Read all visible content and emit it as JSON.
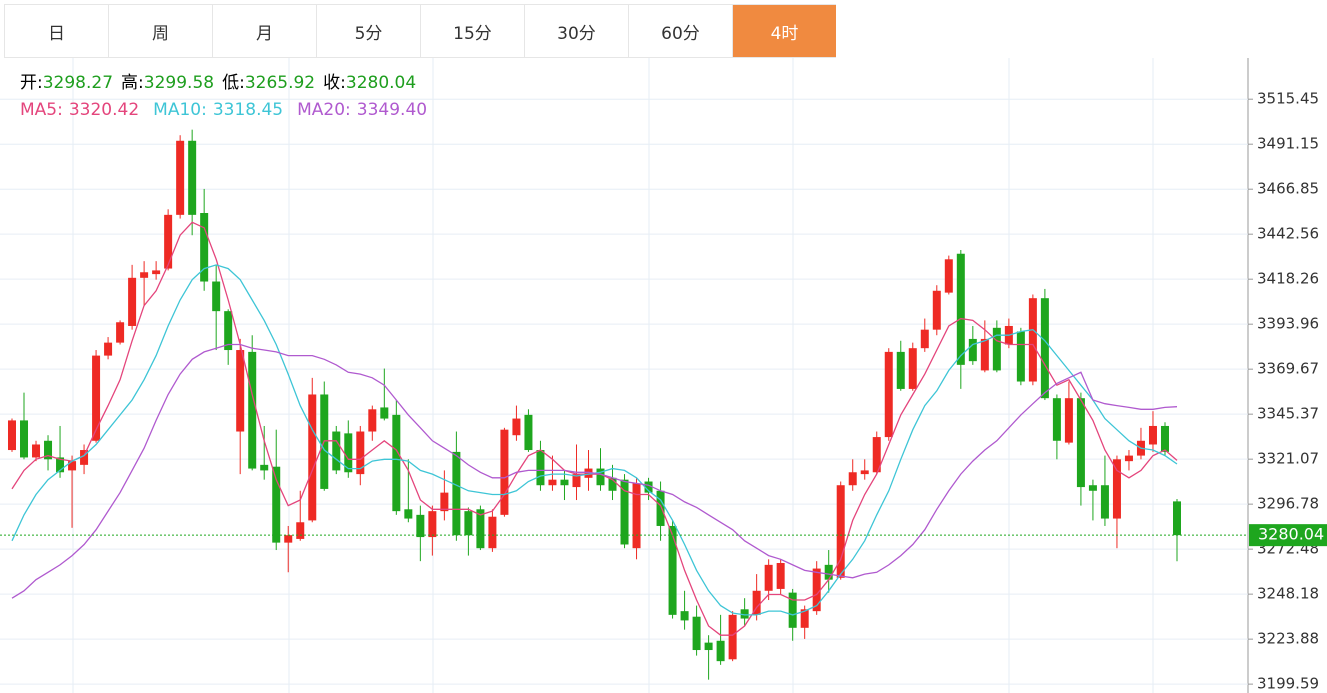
{
  "tabs": {
    "items": [
      "日",
      "周",
      "月",
      "5分",
      "15分",
      "30分",
      "60分",
      "4时"
    ],
    "active": 7
  },
  "chart_data": {
    "type": "candlestick",
    "header_labels": [
      "开:",
      "高:",
      "低:",
      "收:"
    ],
    "up_color": "#ee2a24",
    "down_color": "#1ea61e",
    "candles": {
      "open": [
        3326,
        3342,
        3322,
        3331,
        3322,
        3315,
        3318,
        3331,
        3377,
        3384,
        3393,
        3419,
        3421,
        3424,
        3453,
        3493,
        3454,
        3417,
        3401,
        3336,
        3379,
        3318,
        3317,
        3276,
        3278,
        3288,
        3356,
        3336,
        3335,
        3313,
        3336,
        3349,
        3345,
        3294,
        3291,
        3279,
        3293,
        3325,
        3293,
        3294,
        3273,
        3291,
        3334,
        3345,
        3326,
        3307,
        3310,
        3306,
        3311,
        3316,
        3311,
        3310,
        3273,
        3309,
        3304,
        3285,
        3239,
        3236,
        3222,
        3223,
        3213,
        3240,
        3237,
        3250,
        3251,
        3249,
        3230,
        3239,
        3264,
        3257,
        3307,
        3313,
        3314,
        3333,
        3379,
        3359,
        3381,
        3391,
        3411,
        3432,
        3386,
        3369,
        3392,
        3383,
        3390,
        3363,
        3408,
        3354,
        3330,
        3354,
        3307,
        3307,
        3289,
        3320,
        3323,
        3329,
        3339,
        3298.27
      ],
      "high": [
        3343,
        3357,
        3331,
        3334,
        3339,
        3323,
        3329,
        3380,
        3387,
        3396,
        3426,
        3428,
        3428,
        3456,
        3496,
        3499,
        3467,
        3426,
        3402,
        3386,
        3388,
        3339,
        3337,
        3285,
        3304,
        3365,
        3363,
        3339,
        3342,
        3339,
        3350,
        3370,
        3353,
        3321,
        3296,
        3296,
        3315,
        3336,
        3295,
        3296,
        3294,
        3338,
        3350,
        3348,
        3331,
        3323,
        3315,
        3329,
        3326,
        3327,
        3318,
        3313,
        3311,
        3311,
        3309,
        3288,
        3250,
        3242,
        3226,
        3237,
        3239,
        3246,
        3259,
        3267,
        3267,
        3251,
        3242,
        3266,
        3272,
        3309,
        3321,
        3321,
        3336,
        3381,
        3385,
        3384,
        3397,
        3415,
        3431,
        3434,
        3393,
        3396,
        3396,
        3397,
        3392,
        3410,
        3413,
        3356,
        3363,
        3357,
        3310,
        3323,
        3323,
        3326,
        3338,
        3347,
        3341,
        3299.58
      ],
      "low": [
        3325,
        3321,
        3320,
        3315,
        3311,
        3284,
        3313,
        3330,
        3375,
        3383,
        3391,
        3404,
        3418,
        3423,
        3451,
        3442,
        3412,
        3380,
        3372,
        3313,
        3315,
        3310,
        3272,
        3260,
        3277,
        3287,
        3304,
        3313,
        3311,
        3307,
        3331,
        3342,
        3291,
        3287,
        3266,
        3269,
        3288,
        3277,
        3269,
        3272,
        3271,
        3290,
        3331,
        3325,
        3304,
        3304,
        3299,
        3299,
        3304,
        3304,
        3299,
        3273,
        3267,
        3299,
        3277,
        3235,
        3229,
        3215,
        3202,
        3210,
        3212,
        3231,
        3234,
        3245,
        3248,
        3223,
        3224,
        3237,
        3249,
        3256,
        3304,
        3310,
        3313,
        3331,
        3358,
        3358,
        3379,
        3388,
        3410,
        3359,
        3372,
        3368,
        3368,
        3381,
        3361,
        3361,
        3353,
        3321,
        3329,
        3296,
        3288,
        3285,
        3273,
        3315,
        3321,
        3325,
        3323,
        3265.92
      ],
      "close": [
        3342,
        3322,
        3329,
        3321,
        3314,
        3320,
        3326,
        3377,
        3384,
        3395,
        3419,
        3422,
        3423,
        3453,
        3493,
        3453,
        3417,
        3401,
        3380,
        3380,
        3316,
        3315,
        3276,
        3280,
        3287,
        3356,
        3305,
        3315,
        3314,
        3336,
        3348,
        3343,
        3293,
        3289,
        3279,
        3293,
        3303,
        3280,
        3280,
        3273,
        3290,
        3337,
        3343,
        3326,
        3307,
        3310,
        3307,
        3313,
        3316,
        3307,
        3304,
        3275,
        3308,
        3303,
        3285,
        3237,
        3234,
        3218,
        3218,
        3212,
        3237,
        3235,
        3250,
        3264,
        3265,
        3230,
        3240,
        3262,
        3256,
        3307,
        3314,
        3315,
        3333,
        3379,
        3359,
        3381,
        3391,
        3412,
        3429,
        3372,
        3374,
        3386,
        3369,
        3393,
        3363,
        3408,
        3354,
        3331,
        3354,
        3306,
        3304,
        3289,
        3321,
        3323,
        3331,
        3339,
        3325,
        3280.04
      ]
    },
    "ma": [
      {
        "name": "MA5:",
        "color": "#e4457c",
        "values": [
          3305,
          3315,
          3321,
          3323,
          3321,
          3320,
          3323,
          3337,
          3350,
          3364,
          3385,
          3404,
          3412,
          3426,
          3442,
          3449,
          3446,
          3429,
          3407,
          3383,
          3356,
          3331,
          3310,
          3296,
          3299,
          3315,
          3331,
          3331,
          3321,
          3321,
          3326,
          3331,
          3326,
          3315,
          3299,
          3294,
          3294,
          3294,
          3294,
          3291,
          3293,
          3302,
          3313,
          3323,
          3326,
          3321,
          3315,
          3313,
          3313,
          3313,
          3310,
          3304,
          3302,
          3302,
          3296,
          3280,
          3261,
          3245,
          3231,
          3226,
          3226,
          3231,
          3241,
          3248,
          3248,
          3245,
          3245,
          3248,
          3256,
          3267,
          3288,
          3302,
          3313,
          3329,
          3345,
          3356,
          3367,
          3380,
          3393,
          3397,
          3396,
          3391,
          3385,
          3383,
          3383,
          3383,
          3372,
          3361,
          3364,
          3353,
          3342,
          3326,
          3315,
          3311,
          3315,
          3323,
          3326,
          3320.42
        ]
      },
      {
        "name": "MA10:",
        "color": "#3ec5d6",
        "values": [
          3277,
          3291,
          3302,
          3310,
          3315,
          3320,
          3323,
          3329,
          3337,
          3345,
          3353,
          3364,
          3377,
          3393,
          3407,
          3418,
          3424,
          3426,
          3424,
          3418,
          3407,
          3396,
          3383,
          3367,
          3350,
          3337,
          3326,
          3321,
          3316,
          3316,
          3320,
          3321,
          3321,
          3320,
          3315,
          3313,
          3310,
          3307,
          3304,
          3303,
          3302,
          3302,
          3304,
          3309,
          3312,
          3313,
          3313,
          3312,
          3313,
          3314,
          3316,
          3315,
          3311,
          3304,
          3299,
          3288,
          3275,
          3261,
          3250,
          3242,
          3238,
          3237,
          3237,
          3239,
          3239,
          3237,
          3239,
          3242,
          3250,
          3259,
          3267,
          3277,
          3291,
          3304,
          3321,
          3337,
          3350,
          3358,
          3369,
          3377,
          3383,
          3385,
          3388,
          3388,
          3390,
          3391,
          3385,
          3377,
          3369,
          3361,
          3353,
          3343,
          3337,
          3331,
          3327,
          3326,
          3323,
          3318.45
        ]
      },
      {
        "name": "MA20:",
        "color": "#b05acf",
        "values": [
          3246,
          3250,
          3256,
          3260,
          3264,
          3269,
          3275,
          3283,
          3293,
          3303,
          3315,
          3327,
          3342,
          3356,
          3367,
          3375,
          3379,
          3381,
          3383,
          3383,
          3381,
          3380,
          3379,
          3377,
          3377,
          3377,
          3375,
          3372,
          3368,
          3367,
          3365,
          3361,
          3353,
          3345,
          3338,
          3331,
          3327,
          3323,
          3318,
          3314,
          3311,
          3311,
          3314,
          3315,
          3315,
          3315,
          3315,
          3314,
          3314,
          3313,
          3311,
          3309,
          3308,
          3307,
          3304,
          3302,
          3298,
          3295,
          3291,
          3287,
          3283,
          3277,
          3273,
          3269,
          3267,
          3264,
          3261,
          3260,
          3259,
          3258,
          3257,
          3259,
          3260,
          3264,
          3269,
          3275,
          3283,
          3294,
          3304,
          3313,
          3320,
          3326,
          3331,
          3338,
          3345,
          3351,
          3357,
          3362,
          3365,
          3368,
          3353,
          3351,
          3350,
          3349,
          3348,
          3348,
          3349,
          {
            "value": 3349.4,
            "label": "3349.40"
          }
        ]
      }
    ],
    "ylim": [
      3194.8,
      3537.7
    ],
    "yticks": [
      3199.59,
      3223.88,
      3248.18,
      3272.48,
      3296.78,
      3321.07,
      3345.37,
      3369.67,
      3393.96,
      3418.26,
      3442.56,
      3466.85,
      3491.15,
      3515.45
    ],
    "grid": true,
    "last_price_line": true
  }
}
